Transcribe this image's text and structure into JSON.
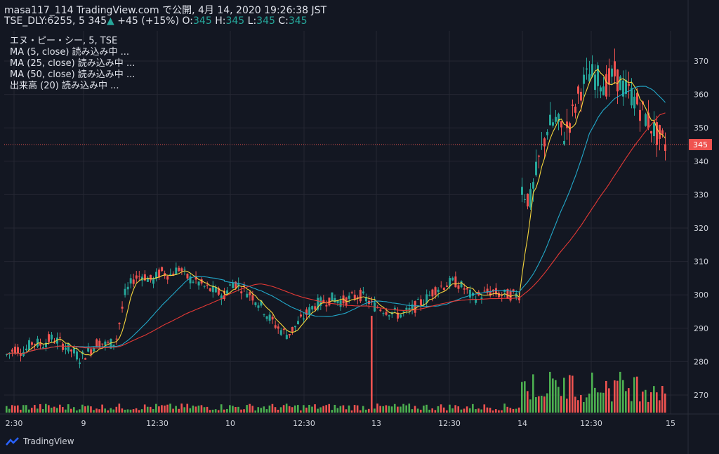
{
  "header": {
    "line1": "masa117_114 TradingView.com で公開, 4月 14, 2020 19:26:38 JST",
    "symbol": "TSE_DLY:6255, 5",
    "price": "345",
    "change": "+45 (+15%)",
    "o_label": "O:",
    "o": "345",
    "h_label": "H:",
    "h": "345",
    "l_label": "L:",
    "l": "345",
    "c_label": "C:",
    "c": "345"
  },
  "legend": [
    "エヌ・ピー・シー, 5, TSE",
    "MA (5, close) 読み込み中 ...",
    "MA (25, close) 読み込み中 ...",
    "MA (50, close) 読み込み中 ...",
    "出来高 (20) 読み込み中 ..."
  ],
  "brand": "TradingView",
  "colors": {
    "background": "#131722",
    "grid": "#242733",
    "up": "#26a69a",
    "down": "#ef5350",
    "ma5": "#f5d63d",
    "ma25": "#22a8c9",
    "ma50": "#e53935",
    "text": "#d1d4dc",
    "price_line": "#ef5350",
    "vol_up": "#4caf50",
    "vol_down": "#ef5350"
  },
  "chart_data": {
    "type": "candlestick",
    "x_ticks": [
      "2:30",
      "9",
      "12:30",
      "10",
      "12:30",
      "13",
      "12:30",
      "14",
      "12:30",
      "15"
    ],
    "y_ticks": [
      270,
      280,
      290,
      300,
      310,
      320,
      330,
      340,
      350,
      360,
      370
    ],
    "ylim": [
      265,
      375
    ],
    "last_price": 345,
    "sessions": [
      {
        "label": "9",
        "path": [
          281,
          283,
          286,
          285,
          286,
          300,
          305,
          306,
          304,
          307,
          306,
          308,
          305,
          304,
          302,
          301,
          300
        ]
      },
      {
        "label": "10",
        "path": [
          300,
          304,
          302,
          300,
          297,
          293,
          290,
          288,
          291,
          294,
          297,
          298,
          299,
          298,
          299,
          300,
          298
        ]
      },
      {
        "label": "13",
        "path": [
          297,
          296,
          295,
          294,
          295,
          297,
          299,
          302,
          303,
          304,
          302,
          299,
          300,
          301,
          300,
          300,
          300
        ]
      },
      {
        "label": "14",
        "path": [
          332,
          328,
          340,
          350,
          352,
          348,
          354,
          362,
          366,
          365,
          363,
          366,
          362,
          360,
          356,
          352,
          348,
          345
        ]
      }
    ]
  }
}
